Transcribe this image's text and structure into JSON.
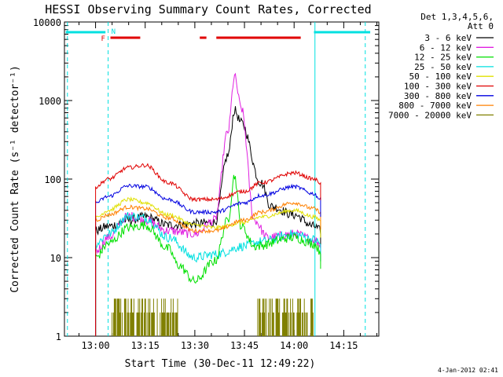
{
  "chart_data": {
    "type": "line",
    "title": "HESSI Observing Summary Count Rates, Corrected",
    "xlabel": "Start Time (30-Dec-11 12:49:22)",
    "ylabel": "Corrected Count Rate (s⁻¹ detector⁻¹)",
    "footer": "4-Jan-2012 02:41",
    "y_scale": "log",
    "ylim": [
      1,
      10000
    ],
    "xlim_minutes": [
      -9.4,
      85.6
    ],
    "x_ticks": [
      {
        "t": 0,
        "label": "13:00"
      },
      {
        "t": 15,
        "label": "13:15"
      },
      {
        "t": 30,
        "label": "13:30"
      },
      {
        "t": 45,
        "label": "13:45"
      },
      {
        "t": 60,
        "label": "14:00"
      },
      {
        "t": 75,
        "label": "14:15"
      }
    ],
    "y_ticks": [
      {
        "v": 1,
        "label": "1"
      },
      {
        "v": 10,
        "label": "10"
      },
      {
        "v": 100,
        "label": "100"
      },
      {
        "v": 1000,
        "label": "1000"
      },
      {
        "v": 10000,
        "label": "10000"
      }
    ],
    "legend": {
      "placement": "right",
      "header": [
        "Det 1,3,4,5,6,",
        "Att 0"
      ],
      "entries": [
        {
          "label": "3 - 6 keV",
          "color": "#000000"
        },
        {
          "label": "6 - 12 keV",
          "color": "#e020e0"
        },
        {
          "label": "12 - 25 keV",
          "color": "#00e000"
        },
        {
          "label": "25 - 50 keV",
          "color": "#00e0e0"
        },
        {
          "label": "50 - 100 keV",
          "color": "#e0e000"
        },
        {
          "label": "100 - 300 keV",
          "color": "#e00000"
        },
        {
          "label": "300 - 800 keV",
          "color": "#0000e0"
        },
        {
          "label": "800 - 7000 keV",
          "color": "#ff8000"
        },
        {
          "label": "7000 - 20000 keV",
          "color": "#808000"
        }
      ]
    },
    "flags": {
      "F_label": "F",
      "N_label": "N",
      "flare_segments_minutes": [
        [
          4.5,
          13.5
        ],
        [
          31.5,
          33.5
        ],
        [
          36.5,
          62
        ]
      ],
      "night_segments_minutes": [
        [
          -9,
          3
        ],
        [
          66,
          83
        ]
      ],
      "day_boundaries_minutes": [
        -8.5,
        3.8,
        66.3,
        81.5
      ]
    },
    "series": [
      {
        "band": "3-6 keV",
        "color": "#000000",
        "t": [
          0,
          3.8,
          10,
          15,
          22,
          30,
          36,
          40,
          42,
          44,
          50,
          53,
          60,
          66,
          68
        ],
        "values": [
          22,
          25,
          30,
          33,
          26,
          27,
          28,
          200,
          750,
          520,
          90,
          45,
          35,
          25,
          22
        ]
      },
      {
        "band": "6-12 keV",
        "color": "#e020e0",
        "t": [
          0,
          3.8,
          10,
          15,
          22,
          30,
          36,
          40,
          42,
          44,
          48,
          52,
          60,
          66,
          68
        ],
        "values": [
          12,
          18,
          34,
          30,
          22,
          20,
          30,
          400,
          2000,
          800,
          30,
          18,
          20,
          17,
          15
        ]
      },
      {
        "band": "12-25 keV",
        "color": "#00e000",
        "t": [
          0,
          3.8,
          10,
          15,
          22,
          25,
          30,
          36,
          40,
          42,
          44,
          48,
          60,
          66,
          68
        ],
        "values": [
          10,
          15,
          24,
          26,
          13,
          8,
          5,
          9,
          30,
          110,
          25,
          14,
          18,
          15,
          12
        ]
      },
      {
        "band": "25-50 keV",
        "color": "#00e0e0",
        "t": [
          0,
          3.8,
          10,
          15,
          22,
          30,
          36,
          45,
          50,
          60,
          66,
          68
        ],
        "values": [
          15,
          20,
          34,
          32,
          18,
          10,
          11,
          14,
          16,
          20,
          17,
          15
        ]
      },
      {
        "band": "50-100 keV",
        "color": "#e0e000",
        "t": [
          0,
          3.8,
          10,
          15,
          22,
          30,
          36,
          45,
          50,
          60,
          66,
          68
        ],
        "values": [
          32,
          40,
          55,
          50,
          35,
          26,
          24,
          28,
          33,
          40,
          33,
          30
        ]
      },
      {
        "band": "100-300 keV",
        "color": "#e00000",
        "t": [
          0,
          3.8,
          10,
          15,
          22,
          30,
          36,
          45,
          50,
          60,
          66,
          68
        ],
        "values": [
          80,
          100,
          140,
          150,
          90,
          55,
          55,
          70,
          90,
          120,
          100,
          90
        ]
      },
      {
        "band": "300-800 keV",
        "color": "#0000e0",
        "t": [
          0,
          3.8,
          10,
          15,
          22,
          30,
          36,
          45,
          50,
          60,
          66,
          68
        ],
        "values": [
          50,
          60,
          82,
          80,
          55,
          38,
          38,
          50,
          62,
          80,
          65,
          55
        ]
      },
      {
        "band": "800-7000 keV",
        "color": "#ff8000",
        "t": [
          0,
          3.8,
          10,
          15,
          22,
          30,
          36,
          45,
          50,
          60,
          66,
          68
        ],
        "values": [
          30,
          35,
          44,
          42,
          32,
          22,
          22,
          30,
          38,
          50,
          42,
          38
        ]
      },
      {
        "band": "7000-20000 keV",
        "color": "#808000",
        "t_ranges": [
          [
            5,
            25
          ],
          [
            49,
            66
          ]
        ],
        "values_range": [
          1,
          3
        ]
      }
    ]
  }
}
